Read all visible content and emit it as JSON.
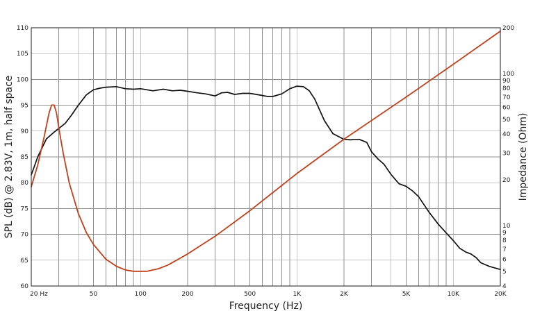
{
  "chart_data": {
    "type": "line",
    "xlabel": "Frequency (Hz)",
    "ylabel": "SPL (dB) @ 2.83V, 1m, half space",
    "y2label": "Impedance (Ohm)",
    "xscale": "log",
    "xlim": [
      20,
      20000
    ],
    "ylim": [
      60,
      110
    ],
    "y2scale": "log",
    "y2lim": [
      4,
      200
    ],
    "grid": true,
    "x_ticks": [
      {
        "value": 20,
        "label": "20  Hz"
      },
      {
        "value": 50,
        "label": "50"
      },
      {
        "value": 100,
        "label": "100"
      },
      {
        "value": 200,
        "label": "200"
      },
      {
        "value": 500,
        "label": "500"
      },
      {
        "value": 1000,
        "label": "1K"
      },
      {
        "value": 2000,
        "label": "2K"
      },
      {
        "value": 5000,
        "label": "5K"
      },
      {
        "value": 10000,
        "label": "10K"
      },
      {
        "value": 20000,
        "label": "20K"
      }
    ],
    "y_ticks": [
      60,
      65,
      70,
      75,
      80,
      85,
      90,
      95,
      100,
      105,
      110
    ],
    "y2_ticks": [
      4,
      5,
      6,
      7,
      8,
      9,
      10,
      20,
      30,
      40,
      50,
      60,
      70,
      80,
      90,
      100,
      200
    ],
    "series": [
      {
        "axis": "left",
        "color": "#111111",
        "x": [
          20,
          22,
          25,
          28,
          30,
          33,
          36,
          40,
          45,
          50,
          55,
          60,
          70,
          80,
          90,
          100,
          120,
          140,
          160,
          180,
          200,
          230,
          260,
          300,
          330,
          360,
          400,
          450,
          500,
          550,
          600,
          650,
          700,
          800,
          900,
          1000,
          1100,
          1200,
          1300,
          1500,
          1700,
          2000,
          2200,
          2500,
          2800,
          3000,
          3300,
          3600,
          4000,
          4500,
          5000,
          5500,
          6000,
          7000,
          8000,
          9000,
          10000,
          11000,
          12000,
          13000,
          14000,
          15000,
          17000,
          20000
        ],
        "y": [
          81.5,
          85,
          88.5,
          89.8,
          90.5,
          91.5,
          93,
          95,
          97,
          98,
          98.3,
          98.5,
          98.6,
          98.2,
          98.1,
          98.2,
          97.8,
          98.1,
          97.8,
          97.9,
          97.7,
          97.4,
          97.2,
          96.8,
          97.4,
          97.5,
          97.1,
          97.3,
          97.3,
          97.1,
          96.9,
          96.7,
          96.7,
          97.2,
          98.2,
          98.7,
          98.6,
          97.8,
          96.2,
          92,
          89.5,
          88.4,
          88.3,
          88.4,
          87.8,
          86,
          84.6,
          83.6,
          81.6,
          79.8,
          79.3,
          78.4,
          77.3,
          74.3,
          72,
          70.3,
          68.8,
          67.3,
          66.6,
          66.2,
          65.5,
          64.5,
          63.8,
          63.2
        ]
      },
      {
        "axis": "right",
        "color": "#c0401a",
        "x": [
          20,
          22,
          24,
          26,
          27,
          28,
          29,
          30,
          32,
          35,
          40,
          45,
          50,
          60,
          70,
          80,
          90,
          100,
          110,
          130,
          150,
          200,
          300,
          500,
          1000,
          2000,
          5000,
          10000,
          20000
        ],
        "y": [
          18,
          25,
          37,
          55,
          62,
          62,
          55,
          44,
          30,
          19,
          12,
          9,
          7.5,
          6,
          5.4,
          5.1,
          5,
          5,
          5,
          5.2,
          5.5,
          6.5,
          8.5,
          12.5,
          22,
          37,
          70,
          115,
          190
        ]
      }
    ]
  }
}
